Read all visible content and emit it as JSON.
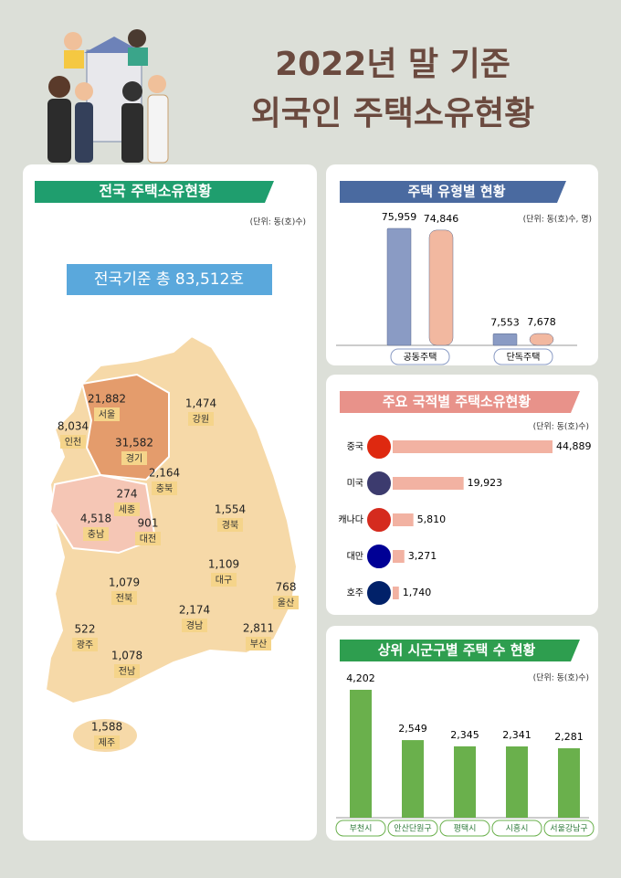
{
  "title_lines": [
    "2022년 말 기준",
    "외국인 주택소유현황"
  ],
  "national": {
    "heading": "전국 주택소유현황",
    "unit": "(단위: 동(호)수)",
    "total": "전국기준 총 83,512호",
    "regions": [
      {
        "name": "서울",
        "value": "21,882"
      },
      {
        "name": "인천",
        "value": "8,034"
      },
      {
        "name": "경기",
        "value": "31,582"
      },
      {
        "name": "강원",
        "value": "1,474"
      },
      {
        "name": "충북",
        "value": "2,164"
      },
      {
        "name": "세종",
        "value": "274"
      },
      {
        "name": "충남",
        "value": "4,518"
      },
      {
        "name": "대전",
        "value": "901"
      },
      {
        "name": "경북",
        "value": "1,554"
      },
      {
        "name": "대구",
        "value": "1,109"
      },
      {
        "name": "울산",
        "value": "768"
      },
      {
        "name": "전북",
        "value": "1,079"
      },
      {
        "name": "경남",
        "value": "2,174"
      },
      {
        "name": "부산",
        "value": "2,811"
      },
      {
        "name": "광주",
        "value": "522"
      },
      {
        "name": "전남",
        "value": "1,078"
      },
      {
        "name": "제주",
        "value": "1,588"
      }
    ]
  },
  "chart_data": [
    {
      "type": "group-bar",
      "title": "주택 유형별 현황",
      "unit": "(단위: 동(호)수, 명)",
      "categories": [
        "공동주택",
        "단독주택"
      ],
      "series": [
        {
          "color": "#8a9bc4",
          "values": [
            75959,
            7553
          ],
          "value_labels": [
            "75,959",
            "7,553"
          ]
        },
        {
          "color": "#f2b8a0",
          "values": [
            74846,
            7678
          ],
          "value_labels": [
            "74,846",
            "7,678"
          ]
        }
      ]
    },
    {
      "type": "hbar",
      "title": "주요 국적별 주택소유현황",
      "unit": "(단위: 동(호)수)",
      "color": "#f2b2a2",
      "categories": [
        "중국",
        "미국",
        "캐나다",
        "대만",
        "호주"
      ],
      "values": [
        44889,
        19923,
        5810,
        3271,
        1740
      ],
      "value_labels": [
        "44,889",
        "19,923",
        "5,810",
        "3,271",
        "1,740"
      ]
    },
    {
      "type": "bar",
      "title": "상위 시군구별 주택 수 현황",
      "unit": "(단위: 동(호)수)",
      "color": "#6ab04c",
      "categories": [
        "부천시",
        "안산단원구",
        "평택시",
        "시흥시",
        "서울강남구"
      ],
      "values": [
        4202,
        2549,
        2345,
        2341,
        2281
      ],
      "value_labels": [
        "4,202",
        "2,549",
        "2,345",
        "2,341",
        "2,281"
      ]
    }
  ]
}
